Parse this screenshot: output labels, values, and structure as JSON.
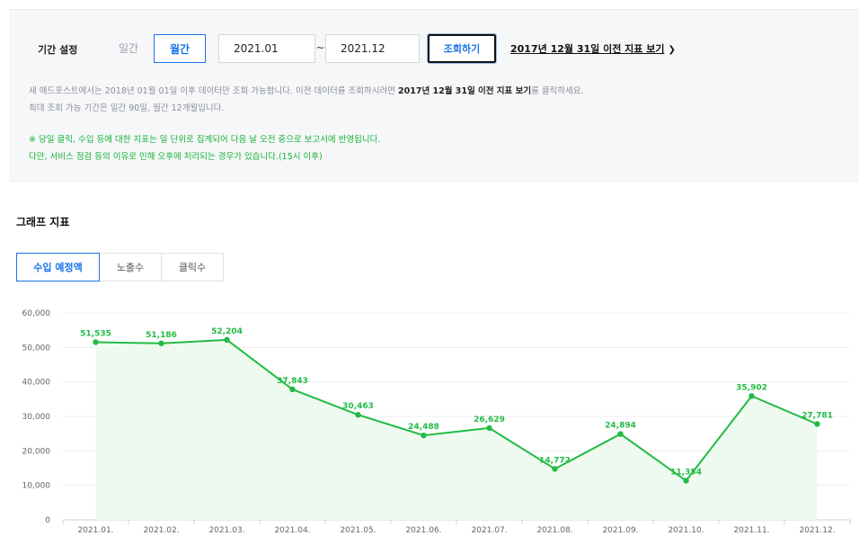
{
  "filter": {
    "period_label": "기간 설정",
    "daily_label": "일간",
    "monthly_label": "월간",
    "start_value": "2021.01",
    "end_value": "2021.12",
    "tilde": "~",
    "search_label": "조회하기",
    "legacy_link": "2017년 12월 31일 이전 지표 보기",
    "notes": {
      "line1_pre": "새 애드포스트에서는 2018년 01월 01일 이후 데이터만 조회 가능합니다. 이전 데이터를 조회하시려면 ",
      "line1_bold": "2017년 12월 31일 이전 지표 보기",
      "line1_post": "를 클릭하세요.",
      "line2": "최대 조회 가능 기간은 일간 90일, 월간 12개월입니다.",
      "line3": "※ 당일 클릭, 수입 등에 대한 지표는 일 단위로 집계되어 다음 날 오전 중으로 보고서에 반영됩니다.",
      "line4": "다만, 서비스 점검 등의 이유로 인해 오후에 처리되는 경우가 있습니다.(15시 이후)"
    }
  },
  "graph": {
    "section_title": "그래프 지표",
    "tabs": [
      "수입 예정액",
      "노출수",
      "클릭수"
    ]
  },
  "colors": {
    "accent": "#1a73e8",
    "line": "#22bb44",
    "area": "#eefaf0",
    "note_green": "#16b336"
  },
  "chart_data": {
    "type": "area",
    "categories": [
      "2021.01.",
      "2021.02.",
      "2021.03.",
      "2021.04.",
      "2021.05.",
      "2021.06.",
      "2021.07.",
      "2021.08.",
      "2021.09.",
      "2021.10.",
      "2021.11.",
      "2021.12."
    ],
    "values": [
      51535,
      51186,
      52204,
      37843,
      30463,
      24488,
      26629,
      14772,
      24894,
      11354,
      35902,
      27781
    ],
    "data_labels": [
      "51,535",
      "51,186",
      "52,204",
      "37,843",
      "30,463",
      "24,488",
      "26,629",
      "14,772",
      "24,894",
      "11,354",
      "35,902",
      "27,781"
    ],
    "y_ticks": [
      0,
      10000,
      20000,
      30000,
      40000,
      50000,
      60000
    ],
    "y_tick_labels": [
      "0",
      "10,000",
      "20,000",
      "30,000",
      "40,000",
      "50,000",
      "60,000"
    ],
    "ylim": [
      0,
      60000
    ],
    "grid": true,
    "legend": "none"
  }
}
